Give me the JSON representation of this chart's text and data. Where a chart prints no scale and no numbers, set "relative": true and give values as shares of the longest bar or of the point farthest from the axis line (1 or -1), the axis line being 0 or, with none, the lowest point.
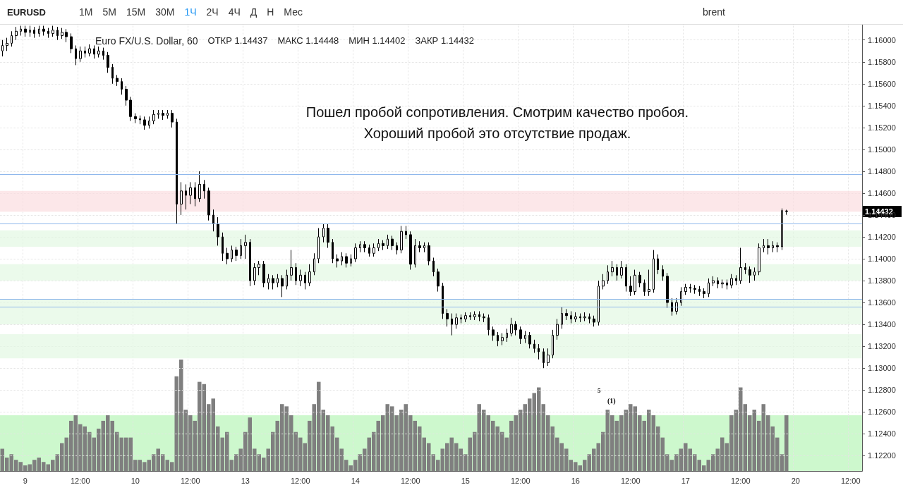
{
  "chart_data": [
    {
      "type": "candlestick",
      "title": "EURUSD",
      "subtitle": "Euro FX/U.S. Dollar, 60",
      "color": "#000000",
      "grid": true,
      "annotations": [
        "Пошел пробой сопротивления. Смотрим качество пробоя. Хороший пробой это отсутствие продаж.",
        "5",
        "(1)",
        "1.14432",
        "ОТКР 1.14437",
        "МАКС 1.14448",
        "МИН 1.14402",
        "ЗАКР 1.14432",
        "1М",
        "5М",
        "15М",
        "30М",
        "1Ч",
        "2Ч",
        "4Ч",
        "Д",
        "Н",
        "Мес",
        "brent"
      ],
      "categories": [
        null,
        null,
        null,
        null,
        null,
        "9",
        null,
        null,
        null,
        null,
        null,
        null,
        null,
        null,
        null,
        null,
        null,
        "12:00",
        null,
        null,
        null,
        null,
        null,
        null,
        null,
        null,
        null,
        null,
        null,
        "10",
        null,
        null,
        null,
        null,
        null,
        null,
        null,
        null,
        null,
        null,
        null,
        "12:00",
        null,
        null,
        null,
        null,
        null,
        null,
        null,
        null,
        null,
        null,
        null,
        "13",
        null,
        null,
        null,
        null,
        null,
        null,
        null,
        null,
        null,
        null,
        null,
        "12:00",
        null,
        null,
        null,
        null,
        null,
        null,
        null,
        null,
        null,
        null,
        null,
        "14",
        null,
        null,
        null,
        null,
        null,
        null,
        null,
        null,
        null,
        null,
        null,
        "12:00",
        null,
        null,
        null,
        null,
        null,
        null,
        null,
        null,
        null,
        null,
        null,
        "15",
        null,
        null,
        null,
        null,
        null,
        null,
        null,
        null,
        null,
        null,
        null,
        "12:00",
        null,
        null,
        null,
        null,
        null,
        null,
        null,
        null,
        null,
        null,
        null,
        "16",
        null,
        null,
        null,
        null,
        null,
        null,
        null,
        null,
        null,
        null,
        null,
        "12:00",
        null,
        null,
        null,
        null,
        null,
        null,
        null,
        null,
        null,
        null,
        null,
        "17",
        null,
        null,
        null,
        null,
        null,
        null,
        null,
        null,
        null,
        null,
        null,
        "12:00",
        null,
        null,
        null,
        null,
        null,
        null,
        null,
        null,
        null,
        null,
        null,
        "20",
        null,
        null,
        null,
        null,
        null,
        null,
        null,
        null,
        null,
        null,
        null,
        "12:00",
        null,
        null
      ],
      "ylim": [
        1.1206,
        1.1614
      ],
      "yticks": [
        {
          "value": 1.122,
          "label": "1.12200"
        },
        {
          "value": 1.124,
          "label": "1.12400"
        },
        {
          "value": 1.126,
          "label": "1.12600"
        },
        {
          "value": 1.128,
          "label": "1.12800"
        },
        {
          "value": 1.13,
          "label": "1.13000"
        },
        {
          "value": 1.132,
          "label": "1.13200"
        },
        {
          "value": 1.134,
          "label": "1.13400"
        },
        {
          "value": 1.136,
          "label": "1.13600"
        },
        {
          "value": 1.138,
          "label": "1.13800"
        },
        {
          "value": 1.14,
          "label": "1.14000"
        },
        {
          "value": 1.142,
          "label": "1.14200"
        },
        {
          "value": 1.144,
          "label": "1.14400"
        },
        {
          "value": 1.146,
          "label": "1.14600"
        },
        {
          "value": 1.148,
          "label": "1.14800"
        },
        {
          "value": 1.15,
          "label": "1.15000"
        },
        {
          "value": 1.152,
          "label": "1.15200"
        },
        {
          "value": 1.154,
          "label": "1.15400"
        },
        {
          "value": 1.156,
          "label": "1.15600"
        },
        {
          "value": 1.158,
          "label": "1.15800"
        },
        {
          "value": 1.16,
          "label": "1.16000"
        }
      ],
      "ref_lines": [
        {
          "axis": "y",
          "value": 1.1477,
          "color": "#90b8ec"
        },
        {
          "axis": "y",
          "value": 1.1432,
          "color": "#90b8ec"
        },
        {
          "axis": "y",
          "value": 1.1363,
          "color": "#90b8ec"
        },
        {
          "axis": "y",
          "value": 1.1356,
          "color": "#90b8ec"
        }
      ],
      "bands": [
        {
          "axis": "y",
          "from": 1.1443,
          "to": 1.1462,
          "color": "#fbdde0"
        },
        {
          "axis": "y",
          "from": 1.1411,
          "to": 1.1426,
          "color": "#e3f8e3"
        },
        {
          "axis": "y",
          "from": 1.138,
          "to": 1.1395,
          "color": "#e3f8e3"
        },
        {
          "axis": "y",
          "from": 1.134,
          "to": 1.1363,
          "color": "#e3f8e3"
        },
        {
          "axis": "y",
          "from": 1.1309,
          "to": 1.1331,
          "color": "#e3f8e3"
        }
      ],
      "ohlc": [
        [
          1.159,
          1.16,
          1.1585,
          1.1595
        ],
        [
          1.1595,
          1.1602,
          1.159,
          1.1597
        ],
        [
          1.1597,
          1.1608,
          1.1594,
          1.1604
        ],
        [
          1.1604,
          1.1612,
          1.16,
          1.1608
        ],
        [
          1.1608,
          1.1613,
          1.1604,
          1.161
        ],
        [
          1.161,
          1.1613,
          1.1603,
          1.1607
        ],
        [
          1.1607,
          1.1613,
          1.1603,
          1.1609
        ],
        [
          1.1609,
          1.1612,
          1.1602,
          1.1606
        ],
        [
          1.1606,
          1.1613,
          1.1603,
          1.161
        ],
        [
          1.161,
          1.1613,
          1.1604,
          1.1608
        ],
        [
          1.1608,
          1.1611,
          1.1602,
          1.1606
        ],
        [
          1.1606,
          1.1613,
          1.1603,
          1.1609
        ],
        [
          1.1609,
          1.1612,
          1.16,
          1.1604
        ],
        [
          1.1604,
          1.1611,
          1.1601,
          1.1607
        ],
        [
          1.1607,
          1.161,
          1.1598,
          1.1603
        ],
        [
          1.1603,
          1.1606,
          1.1588,
          1.1592
        ],
        [
          1.1592,
          1.1595,
          1.1577,
          1.1583
        ],
        [
          1.1583,
          1.1594,
          1.158,
          1.159
        ],
        [
          1.159,
          1.1594,
          1.1584,
          1.1588
        ],
        [
          1.1588,
          1.1596,
          1.1585,
          1.1592
        ],
        [
          1.1592,
          1.1595,
          1.1583,
          1.1587
        ],
        [
          1.1587,
          1.1594,
          1.1584,
          1.159
        ],
        [
          1.159,
          1.1593,
          1.1582,
          1.1586
        ],
        [
          1.1586,
          1.1589,
          1.157,
          1.1575
        ],
        [
          1.1575,
          1.1578,
          1.156,
          1.1565
        ],
        [
          1.1565,
          1.1568,
          1.1558,
          1.1562
        ],
        [
          1.1562,
          1.1565,
          1.155,
          1.1555
        ],
        [
          1.1555,
          1.1558,
          1.154,
          1.1545
        ],
        [
          1.1545,
          1.1548,
          1.1526,
          1.153
        ],
        [
          1.153,
          1.1533,
          1.1524,
          1.1528
        ],
        [
          1.1528,
          1.1531,
          1.1523,
          1.1527
        ],
        [
          1.1527,
          1.153,
          1.1518,
          1.1522
        ],
        [
          1.1522,
          1.153,
          1.1519,
          1.1526
        ],
        [
          1.1526,
          1.1536,
          1.1523,
          1.1532
        ],
        [
          1.1532,
          1.1536,
          1.1528,
          1.1533
        ],
        [
          1.1533,
          1.1536,
          1.1527,
          1.1531
        ],
        [
          1.1531,
          1.1536,
          1.1528,
          1.1533
        ],
        [
          1.1533,
          1.1536,
          1.152,
          1.1525
        ],
        [
          1.1525,
          1.1528,
          1.1432,
          1.145
        ],
        [
          1.145,
          1.147,
          1.144,
          1.1462
        ],
        [
          1.1462,
          1.1468,
          1.1445,
          1.1458
        ],
        [
          1.1458,
          1.147,
          1.145,
          1.1465
        ],
        [
          1.1465,
          1.147,
          1.1448,
          1.1455
        ],
        [
          1.1455,
          1.148,
          1.1452,
          1.1468
        ],
        [
          1.1468,
          1.1472,
          1.1455,
          1.1462
        ],
        [
          1.1462,
          1.1465,
          1.1435,
          1.144
        ],
        [
          1.144,
          1.1445,
          1.1425,
          1.1432
        ],
        [
          1.1432,
          1.1438,
          1.1412,
          1.142
        ],
        [
          1.142,
          1.1424,
          1.1398,
          1.1405
        ],
        [
          1.1405,
          1.141,
          1.1395,
          1.14
        ],
        [
          1.14,
          1.1412,
          1.1397,
          1.1408
        ],
        [
          1.1408,
          1.1411,
          1.1398,
          1.1403
        ],
        [
          1.1403,
          1.1418,
          1.14,
          1.1412
        ],
        [
          1.1412,
          1.1422,
          1.14,
          1.1415
        ],
        [
          1.1415,
          1.1418,
          1.1375,
          1.138
        ],
        [
          1.138,
          1.1396,
          1.1376,
          1.1392
        ],
        [
          1.1392,
          1.1398,
          1.1385,
          1.1395
        ],
        [
          1.1395,
          1.1398,
          1.1374,
          1.1378
        ],
        [
          1.1378,
          1.1386,
          1.1372,
          1.1382
        ],
        [
          1.1382,
          1.1385,
          1.1372,
          1.1378
        ],
        [
          1.1378,
          1.1386,
          1.1374,
          1.1382
        ],
        [
          1.1382,
          1.1385,
          1.1365,
          1.1375
        ],
        [
          1.1375,
          1.139,
          1.1372,
          1.1385
        ],
        [
          1.1385,
          1.1408,
          1.138,
          1.1392
        ],
        [
          1.1392,
          1.1396,
          1.1376,
          1.138
        ],
        [
          1.138,
          1.139,
          1.1375,
          1.1385
        ],
        [
          1.1385,
          1.1388,
          1.1372,
          1.1378
        ],
        [
          1.1378,
          1.1395,
          1.1375,
          1.1388
        ],
        [
          1.1388,
          1.1405,
          1.1385,
          1.14
        ],
        [
          1.14,
          1.1428,
          1.1396,
          1.142
        ],
        [
          1.142,
          1.1432,
          1.1415,
          1.1428
        ],
        [
          1.1428,
          1.1432,
          1.141,
          1.1415
        ],
        [
          1.1415,
          1.1418,
          1.1396,
          1.14
        ],
        [
          1.14,
          1.1404,
          1.1392,
          1.1398
        ],
        [
          1.1398,
          1.1406,
          1.1394,
          1.1402
        ],
        [
          1.1402,
          1.1405,
          1.1392,
          1.1396
        ],
        [
          1.1396,
          1.1404,
          1.1393,
          1.14
        ],
        [
          1.14,
          1.1414,
          1.1397,
          1.141
        ],
        [
          1.141,
          1.1416,
          1.1406,
          1.1413
        ],
        [
          1.1413,
          1.1416,
          1.1406,
          1.141
        ],
        [
          1.141,
          1.1413,
          1.1402,
          1.1405
        ],
        [
          1.1405,
          1.1414,
          1.1402,
          1.141
        ],
        [
          1.141,
          1.1418,
          1.1407,
          1.1414
        ],
        [
          1.1414,
          1.1417,
          1.1408,
          1.1412
        ],
        [
          1.1412,
          1.1422,
          1.1409,
          1.1418
        ],
        [
          1.1418,
          1.1421,
          1.1408,
          1.1412
        ],
        [
          1.1412,
          1.1415,
          1.1404,
          1.1408
        ],
        [
          1.1408,
          1.143,
          1.1405,
          1.1425
        ],
        [
          1.1425,
          1.143,
          1.1418,
          1.1422
        ],
        [
          1.1422,
          1.1425,
          1.139,
          1.1395
        ],
        [
          1.1395,
          1.1418,
          1.1392,
          1.1412
        ],
        [
          1.1412,
          1.1416,
          1.1406,
          1.141
        ],
        [
          1.141,
          1.1415,
          1.1406,
          1.1412
        ],
        [
          1.1412,
          1.1415,
          1.1394,
          1.1398
        ],
        [
          1.1398,
          1.1401,
          1.1384,
          1.1388
        ],
        [
          1.1388,
          1.1391,
          1.137,
          1.1375
        ],
        [
          1.1375,
          1.1378,
          1.1345,
          1.135
        ],
        [
          1.135,
          1.1354,
          1.1338,
          1.1345
        ],
        [
          1.1345,
          1.135,
          1.133,
          1.134
        ],
        [
          1.134,
          1.135,
          1.1336,
          1.1346
        ],
        [
          1.1346,
          1.1349,
          1.1341,
          1.1345
        ],
        [
          1.1345,
          1.1351,
          1.1342,
          1.1348
        ],
        [
          1.1348,
          1.1351,
          1.1344,
          1.1347
        ],
        [
          1.1347,
          1.1352,
          1.1344,
          1.1349
        ],
        [
          1.1349,
          1.1352,
          1.1343,
          1.1347
        ],
        [
          1.1347,
          1.135,
          1.1342,
          1.1346
        ],
        [
          1.1346,
          1.1349,
          1.133,
          1.1335
        ],
        [
          1.1335,
          1.1338,
          1.1325,
          1.133
        ],
        [
          1.133,
          1.1333,
          1.132,
          1.1325
        ],
        [
          1.1325,
          1.1332,
          1.1321,
          1.1328
        ],
        [
          1.1328,
          1.1336,
          1.1324,
          1.1332
        ],
        [
          1.1332,
          1.1346,
          1.1329,
          1.134
        ],
        [
          1.134,
          1.1343,
          1.133,
          1.1335
        ],
        [
          1.1335,
          1.1338,
          1.1322,
          1.1327
        ],
        [
          1.1327,
          1.1334,
          1.1323,
          1.133
        ],
        [
          1.133,
          1.1333,
          1.1318,
          1.1322
        ],
        [
          1.1322,
          1.1326,
          1.1314,
          1.1318
        ],
        [
          1.1318,
          1.1322,
          1.1308,
          1.1315
        ],
        [
          1.1315,
          1.1318,
          1.13,
          1.1305
        ],
        [
          1.1305,
          1.1318,
          1.1302,
          1.1312
        ],
        [
          1.1312,
          1.1335,
          1.1309,
          1.133
        ],
        [
          1.133,
          1.1345,
          1.1326,
          1.134
        ],
        [
          1.134,
          1.1356,
          1.1336,
          1.135
        ],
        [
          1.135,
          1.1354,
          1.1344,
          1.1348
        ],
        [
          1.1348,
          1.1352,
          1.1341,
          1.1345
        ],
        [
          1.1345,
          1.1351,
          1.1342,
          1.1347
        ],
        [
          1.1347,
          1.135,
          1.1342,
          1.1346
        ],
        [
          1.1346,
          1.1351,
          1.1343,
          1.1347
        ],
        [
          1.1347,
          1.135,
          1.1341,
          1.1345
        ],
        [
          1.1345,
          1.1348,
          1.1338,
          1.1342
        ],
        [
          1.1342,
          1.138,
          1.1339,
          1.1375
        ],
        [
          1.1375,
          1.1386,
          1.1372,
          1.138
        ],
        [
          1.138,
          1.1394,
          1.1377,
          1.1388
        ],
        [
          1.1388,
          1.1398,
          1.1384,
          1.1392
        ],
        [
          1.1392,
          1.1395,
          1.138,
          1.1385
        ],
        [
          1.1385,
          1.1398,
          1.1382,
          1.1392
        ],
        [
          1.1392,
          1.1395,
          1.137,
          1.1375
        ],
        [
          1.1375,
          1.1384,
          1.1366,
          1.137
        ],
        [
          1.137,
          1.139,
          1.1367,
          1.1385
        ],
        [
          1.1385,
          1.1388,
          1.1374,
          1.1378
        ],
        [
          1.1378,
          1.1381,
          1.1366,
          1.137
        ],
        [
          1.137,
          1.139,
          1.1366,
          1.1372
        ],
        [
          1.1372,
          1.1408,
          1.1369,
          1.14
        ],
        [
          1.14,
          1.1404,
          1.1386,
          1.139
        ],
        [
          1.139,
          1.1394,
          1.138,
          1.1384
        ],
        [
          1.1384,
          1.1387,
          1.1355,
          1.136
        ],
        [
          1.136,
          1.1364,
          1.1348,
          1.1352
        ],
        [
          1.1352,
          1.1364,
          1.1349,
          1.136
        ],
        [
          1.136,
          1.1374,
          1.1357,
          1.137
        ],
        [
          1.137,
          1.1377,
          1.1367,
          1.1374
        ],
        [
          1.1374,
          1.1377,
          1.1369,
          1.1373
        ],
        [
          1.1373,
          1.1376,
          1.1368,
          1.1372
        ],
        [
          1.1372,
          1.1375,
          1.1366,
          1.137
        ],
        [
          1.137,
          1.1373,
          1.1364,
          1.1368
        ],
        [
          1.1368,
          1.1382,
          1.1365,
          1.1378
        ],
        [
          1.1378,
          1.1384,
          1.1375,
          1.138
        ],
        [
          1.138,
          1.1383,
          1.1373,
          1.1377
        ],
        [
          1.1377,
          1.1381,
          1.1373,
          1.1378
        ],
        [
          1.1378,
          1.1381,
          1.1372,
          1.1376
        ],
        [
          1.1376,
          1.1386,
          1.1373,
          1.1382
        ],
        [
          1.1382,
          1.1385,
          1.1376,
          1.138
        ],
        [
          1.138,
          1.141,
          1.1377,
          1.1392
        ],
        [
          1.1392,
          1.1396,
          1.1386,
          1.139
        ],
        [
          1.139,
          1.1393,
          1.1378,
          1.1385
        ],
        [
          1.1385,
          1.1392,
          1.138,
          1.1388
        ],
        [
          1.1388,
          1.1414,
          1.1385,
          1.141
        ],
        [
          1.141,
          1.1418,
          1.1406,
          1.1412
        ],
        [
          1.1412,
          1.1418,
          1.1404,
          1.141
        ],
        [
          1.141,
          1.1416,
          1.1406,
          1.1412
        ],
        [
          1.1412,
          1.1415,
          1.1406,
          1.1411
        ],
        [
          1.1411,
          1.1446,
          1.1408,
          1.1444
        ],
        [
          1.14437,
          1.14448,
          1.14402,
          1.14432
        ],
        null,
        null,
        null,
        null,
        null,
        null,
        null,
        null,
        null,
        null,
        null,
        null,
        null,
        null,
        null,
        null
      ]
    },
    {
      "type": "bar",
      "relative": true,
      "color": "#7f7f7f",
      "categories": [
        null,
        null,
        null,
        null,
        null,
        null,
        null,
        null,
        null,
        null,
        null,
        null,
        null,
        null,
        null,
        null,
        null,
        null,
        null,
        null,
        null,
        null,
        null,
        null,
        null,
        null,
        null,
        null,
        null,
        null,
        null,
        null,
        null,
        null,
        null,
        null,
        null,
        null,
        null,
        null,
        null,
        null,
        null,
        null,
        null,
        null,
        null,
        null,
        null,
        null,
        null,
        null,
        null,
        null,
        null,
        null,
        null,
        null,
        null,
        null,
        null,
        null,
        null,
        null,
        null,
        null,
        null,
        null,
        null,
        null,
        null,
        null,
        null,
        null,
        null,
        null,
        null,
        null,
        null,
        null,
        null,
        null,
        null,
        null,
        null,
        null,
        null,
        null,
        null,
        null,
        null,
        null,
        null,
        null,
        null,
        null,
        null,
        null,
        null,
        null,
        null,
        null,
        null,
        null,
        null,
        null,
        null,
        null,
        null,
        null,
        null,
        null,
        null,
        null,
        null,
        null,
        null,
        null,
        null,
        null,
        null,
        null,
        null,
        null,
        null,
        null,
        null,
        null,
        null,
        null,
        null,
        null,
        null,
        null,
        null,
        null,
        null,
        null,
        null,
        null,
        null,
        null,
        null,
        null,
        null,
        null,
        null,
        null,
        null,
        null,
        null,
        null,
        null,
        null,
        null,
        null,
        null,
        null,
        null,
        null,
        null,
        null,
        null,
        null,
        null,
        null,
        null,
        null,
        null,
        null,
        null,
        null,
        null,
        null,
        null,
        null,
        null,
        null,
        null,
        null,
        null,
        null,
        null,
        null,
        null,
        null,
        null,
        null
      ],
      "bands": [
        {
          "axis": "y",
          "from": 0,
          "to": 0.5,
          "color": "#b8f5b8"
        }
      ],
      "values": [
        0.2,
        0.12,
        0.15,
        0.1,
        0.08,
        0.05,
        0.06,
        0.1,
        0.12,
        0.08,
        0.06,
        0.1,
        0.15,
        0.25,
        0.3,
        0.45,
        0.5,
        0.42,
        0.4,
        0.35,
        0.3,
        0.38,
        0.45,
        0.5,
        0.45,
        0.35,
        0.3,
        0.3,
        0.3,
        0.1,
        0.1,
        0.08,
        0.1,
        0.15,
        0.2,
        0.15,
        0.1,
        0.08,
        0.85,
        1.0,
        0.55,
        0.5,
        0.45,
        0.8,
        0.78,
        0.6,
        0.65,
        0.4,
        0.3,
        0.35,
        0.1,
        0.15,
        0.2,
        0.35,
        0.48,
        0.2,
        0.15,
        0.12,
        0.2,
        0.35,
        0.45,
        0.6,
        0.58,
        0.5,
        0.35,
        0.3,
        0.25,
        0.45,
        0.6,
        0.8,
        0.55,
        0.5,
        0.4,
        0.3,
        0.2,
        0.1,
        0.05,
        0.1,
        0.15,
        0.2,
        0.3,
        0.35,
        0.45,
        0.5,
        0.6,
        0.58,
        0.5,
        0.55,
        0.6,
        0.5,
        0.45,
        0.4,
        0.3,
        0.25,
        0.15,
        0.1,
        0.2,
        0.25,
        0.3,
        0.25,
        0.2,
        0.15,
        0.3,
        0.35,
        0.6,
        0.55,
        0.5,
        0.45,
        0.4,
        0.35,
        0.3,
        0.45,
        0.5,
        0.55,
        0.6,
        0.65,
        0.7,
        0.75,
        0.6,
        0.5,
        0.4,
        0.3,
        0.25,
        0.2,
        0.1,
        0.08,
        0.05,
        0.1,
        0.15,
        0.2,
        0.25,
        0.35,
        0.55,
        0.5,
        0.45,
        0.5,
        0.55,
        0.6,
        0.58,
        0.5,
        0.45,
        0.55,
        0.5,
        0.4,
        0.3,
        0.15,
        0.1,
        0.15,
        0.2,
        0.25,
        0.2,
        0.15,
        0.1,
        0.05,
        0.1,
        0.15,
        0.2,
        0.3,
        0.25,
        0.5,
        0.55,
        0.75,
        0.6,
        0.5,
        0.55,
        0.45,
        0.6,
        0.5,
        0.4,
        0.3,
        0.15,
        0.5,
        null,
        null,
        null,
        null,
        null,
        null,
        null,
        null,
        null,
        null,
        null,
        null,
        null,
        null,
        null,
        null
      ]
    }
  ]
}
